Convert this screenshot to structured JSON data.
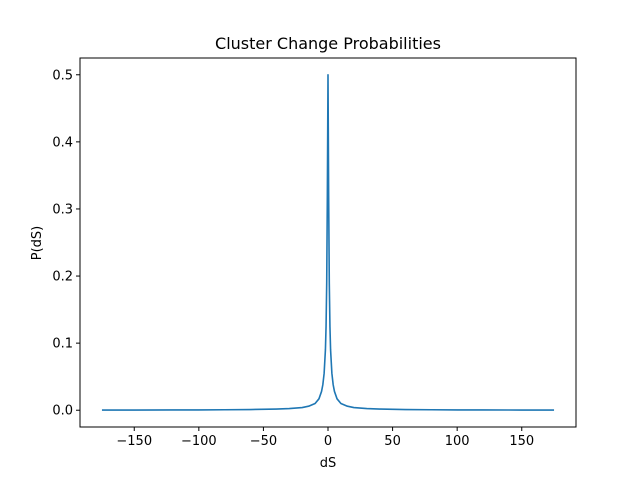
{
  "chart_data": {
    "type": "line",
    "title": "Cluster Change Probabilities",
    "xlabel": "dS",
    "ylabel": "P(dS)",
    "xlim": [
      -192,
      192
    ],
    "ylim": [
      -0.025,
      0.525
    ],
    "xticks": [
      {
        "value": -150,
        "label": "−150"
      },
      {
        "value": -100,
        "label": "−100"
      },
      {
        "value": -50,
        "label": "−50"
      },
      {
        "value": 0,
        "label": "0"
      },
      {
        "value": 50,
        "label": "50"
      },
      {
        "value": 100,
        "label": "100"
      },
      {
        "value": 150,
        "label": "150"
      }
    ],
    "yticks": [
      {
        "value": 0.0,
        "label": "0.0"
      },
      {
        "value": 0.1,
        "label": "0.1"
      },
      {
        "value": 0.2,
        "label": "0.2"
      },
      {
        "value": 0.3,
        "label": "0.3"
      },
      {
        "value": 0.4,
        "label": "0.4"
      },
      {
        "value": 0.5,
        "label": "0.5"
      }
    ],
    "grid": false,
    "series": [
      {
        "color": "#1f77b4",
        "x": [
          -175,
          -150,
          -120,
          -100,
          -80,
          -60,
          -40,
          -30,
          -20,
          -15,
          -10,
          -7,
          -5,
          -4,
          -3,
          -2,
          -1.5,
          -1,
          -0.5,
          0,
          0.5,
          1,
          1.5,
          2,
          3,
          4,
          5,
          7,
          10,
          15,
          20,
          30,
          40,
          60,
          80,
          100,
          120,
          150,
          175
        ],
        "y": [
          0.0002,
          0.0003,
          0.0004,
          0.0005,
          0.0007,
          0.001,
          0.0018,
          0.0025,
          0.004,
          0.006,
          0.01,
          0.017,
          0.028,
          0.038,
          0.055,
          0.09,
          0.125,
          0.19,
          0.32,
          0.5,
          0.32,
          0.19,
          0.125,
          0.09,
          0.055,
          0.038,
          0.028,
          0.017,
          0.01,
          0.006,
          0.004,
          0.0025,
          0.0018,
          0.001,
          0.0007,
          0.0005,
          0.0004,
          0.0003,
          0.0002
        ]
      }
    ]
  }
}
